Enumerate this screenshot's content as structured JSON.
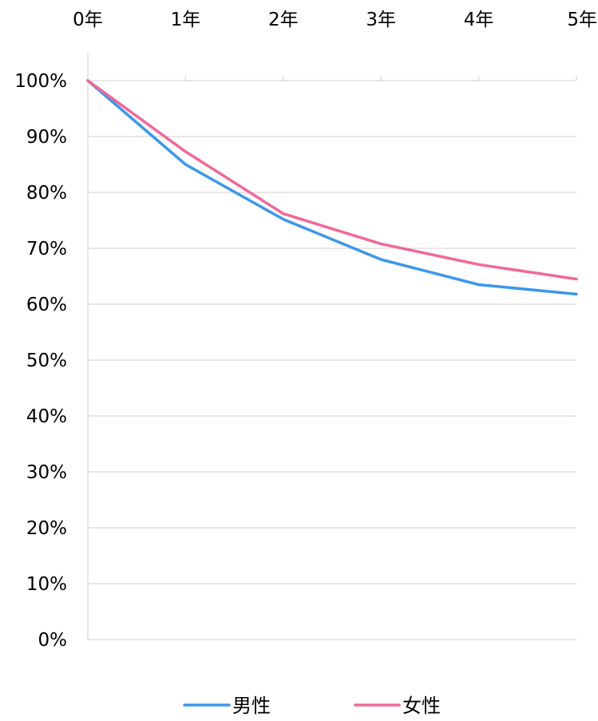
{
  "chart_data": {
    "type": "line",
    "categories": [
      "0年",
      "1年",
      "2年",
      "3年",
      "4年",
      "5年"
    ],
    "y_ticks": [
      "0%",
      "10%",
      "20%",
      "30%",
      "40%",
      "50%",
      "60%",
      "70%",
      "80%",
      "90%",
      "100%"
    ],
    "ylim": [
      0,
      100
    ],
    "grid": true,
    "legend": "bottom",
    "series": [
      {
        "name": "男性",
        "color": "#3d97eb",
        "values": [
          100,
          85.0,
          75.2,
          68.0,
          63.5,
          61.8
        ]
      },
      {
        "name": "女性",
        "color": "#f0689a",
        "values": [
          100,
          87.3,
          76.2,
          70.8,
          67.1,
          64.5
        ]
      }
    ]
  }
}
